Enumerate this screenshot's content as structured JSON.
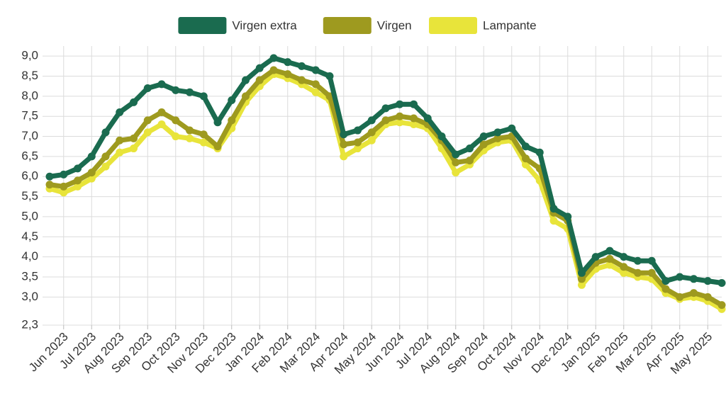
{
  "chart_data": {
    "type": "line",
    "categories": [
      null,
      "Jun 2023",
      null,
      "Jul 2023",
      null,
      "Aug 2023",
      null,
      "Sep 2023",
      null,
      "Oct 2023",
      null,
      "Nov 2023",
      null,
      "Dec 2023",
      null,
      "Jan 2024",
      null,
      "Feb 2024",
      null,
      "Mar 2024",
      null,
      "Apr 2024",
      null,
      "May 2024",
      null,
      "Jun 2024",
      null,
      "Jul 2024",
      null,
      "Aug 2024",
      null,
      "Sep 2024",
      null,
      "Oct 2024",
      null,
      "Nov 2024",
      null,
      "Dec 2024",
      null,
      "Jan 2025",
      null,
      "Feb 2025",
      null,
      "Mar 2025",
      null,
      "Apr 2025",
      null,
      "May 2025",
      null
    ],
    "series": [
      {
        "name": "Virgen extra",
        "color": "#1a6b4f",
        "values": [
          6.0,
          6.05,
          6.2,
          6.5,
          7.1,
          7.6,
          7.85,
          8.2,
          8.3,
          8.15,
          8.1,
          8.0,
          7.35,
          7.9,
          8.4,
          8.7,
          8.95,
          8.85,
          8.75,
          8.65,
          8.5,
          7.05,
          7.15,
          7.4,
          7.7,
          7.8,
          7.8,
          7.45,
          7.0,
          6.55,
          6.7,
          7.0,
          7.1,
          7.2,
          6.75,
          6.6,
          5.2,
          5.0,
          3.6,
          4.0,
          4.15,
          4.0,
          3.9,
          3.9,
          3.4,
          3.5,
          3.45,
          3.4,
          3.35
        ]
      },
      {
        "name": "Virgen",
        "color": "#9e9a1f",
        "values": [
          5.8,
          5.75,
          5.9,
          6.1,
          6.5,
          6.9,
          6.95,
          7.4,
          7.6,
          7.4,
          7.15,
          7.05,
          6.75,
          7.4,
          8.0,
          8.4,
          8.65,
          8.55,
          8.4,
          8.3,
          8.0,
          6.8,
          6.85,
          7.1,
          7.4,
          7.5,
          7.45,
          7.3,
          6.9,
          6.35,
          6.4,
          6.8,
          6.95,
          7.0,
          6.45,
          6.2,
          5.1,
          4.9,
          3.45,
          3.85,
          3.95,
          3.75,
          3.6,
          3.6,
          3.2,
          3.0,
          3.1,
          3.0,
          2.8
        ]
      },
      {
        "name": "Lampante",
        "color": "#e8e43a",
        "values": [
          5.7,
          5.6,
          5.75,
          5.95,
          6.25,
          6.6,
          6.7,
          7.1,
          7.3,
          7.0,
          6.95,
          6.85,
          6.7,
          7.2,
          7.85,
          8.25,
          8.55,
          8.45,
          8.3,
          8.1,
          7.9,
          6.5,
          6.7,
          6.9,
          7.3,
          7.35,
          7.3,
          7.2,
          6.7,
          6.1,
          6.3,
          6.65,
          6.85,
          6.9,
          6.3,
          5.9,
          4.9,
          4.7,
          3.3,
          3.7,
          3.8,
          3.6,
          3.5,
          3.45,
          3.1,
          2.95,
          3.0,
          2.9,
          2.7
        ]
      }
    ],
    "ylim": [
      2.3,
      9.25
    ],
    "yticks": [
      {
        "value": 2.3,
        "label": "2,3"
      },
      {
        "value": 3.0,
        "label": "3,0"
      },
      {
        "value": 3.5,
        "label": "3,5"
      },
      {
        "value": 4.0,
        "label": "4,0"
      },
      {
        "value": 4.5,
        "label": "4,5"
      },
      {
        "value": 5.0,
        "label": "5,0"
      },
      {
        "value": 5.5,
        "label": "5,5"
      },
      {
        "value": 6.0,
        "label": "6,0"
      },
      {
        "value": 6.5,
        "label": "6,5"
      },
      {
        "value": 7.0,
        "label": "7,0"
      },
      {
        "value": 7.5,
        "label": "7,5"
      },
      {
        "value": 8.0,
        "label": "8,0"
      },
      {
        "value": 8.5,
        "label": "8,5"
      },
      {
        "value": 9.0,
        "label": "9,0"
      }
    ],
    "grid": true,
    "legend": "top"
  }
}
